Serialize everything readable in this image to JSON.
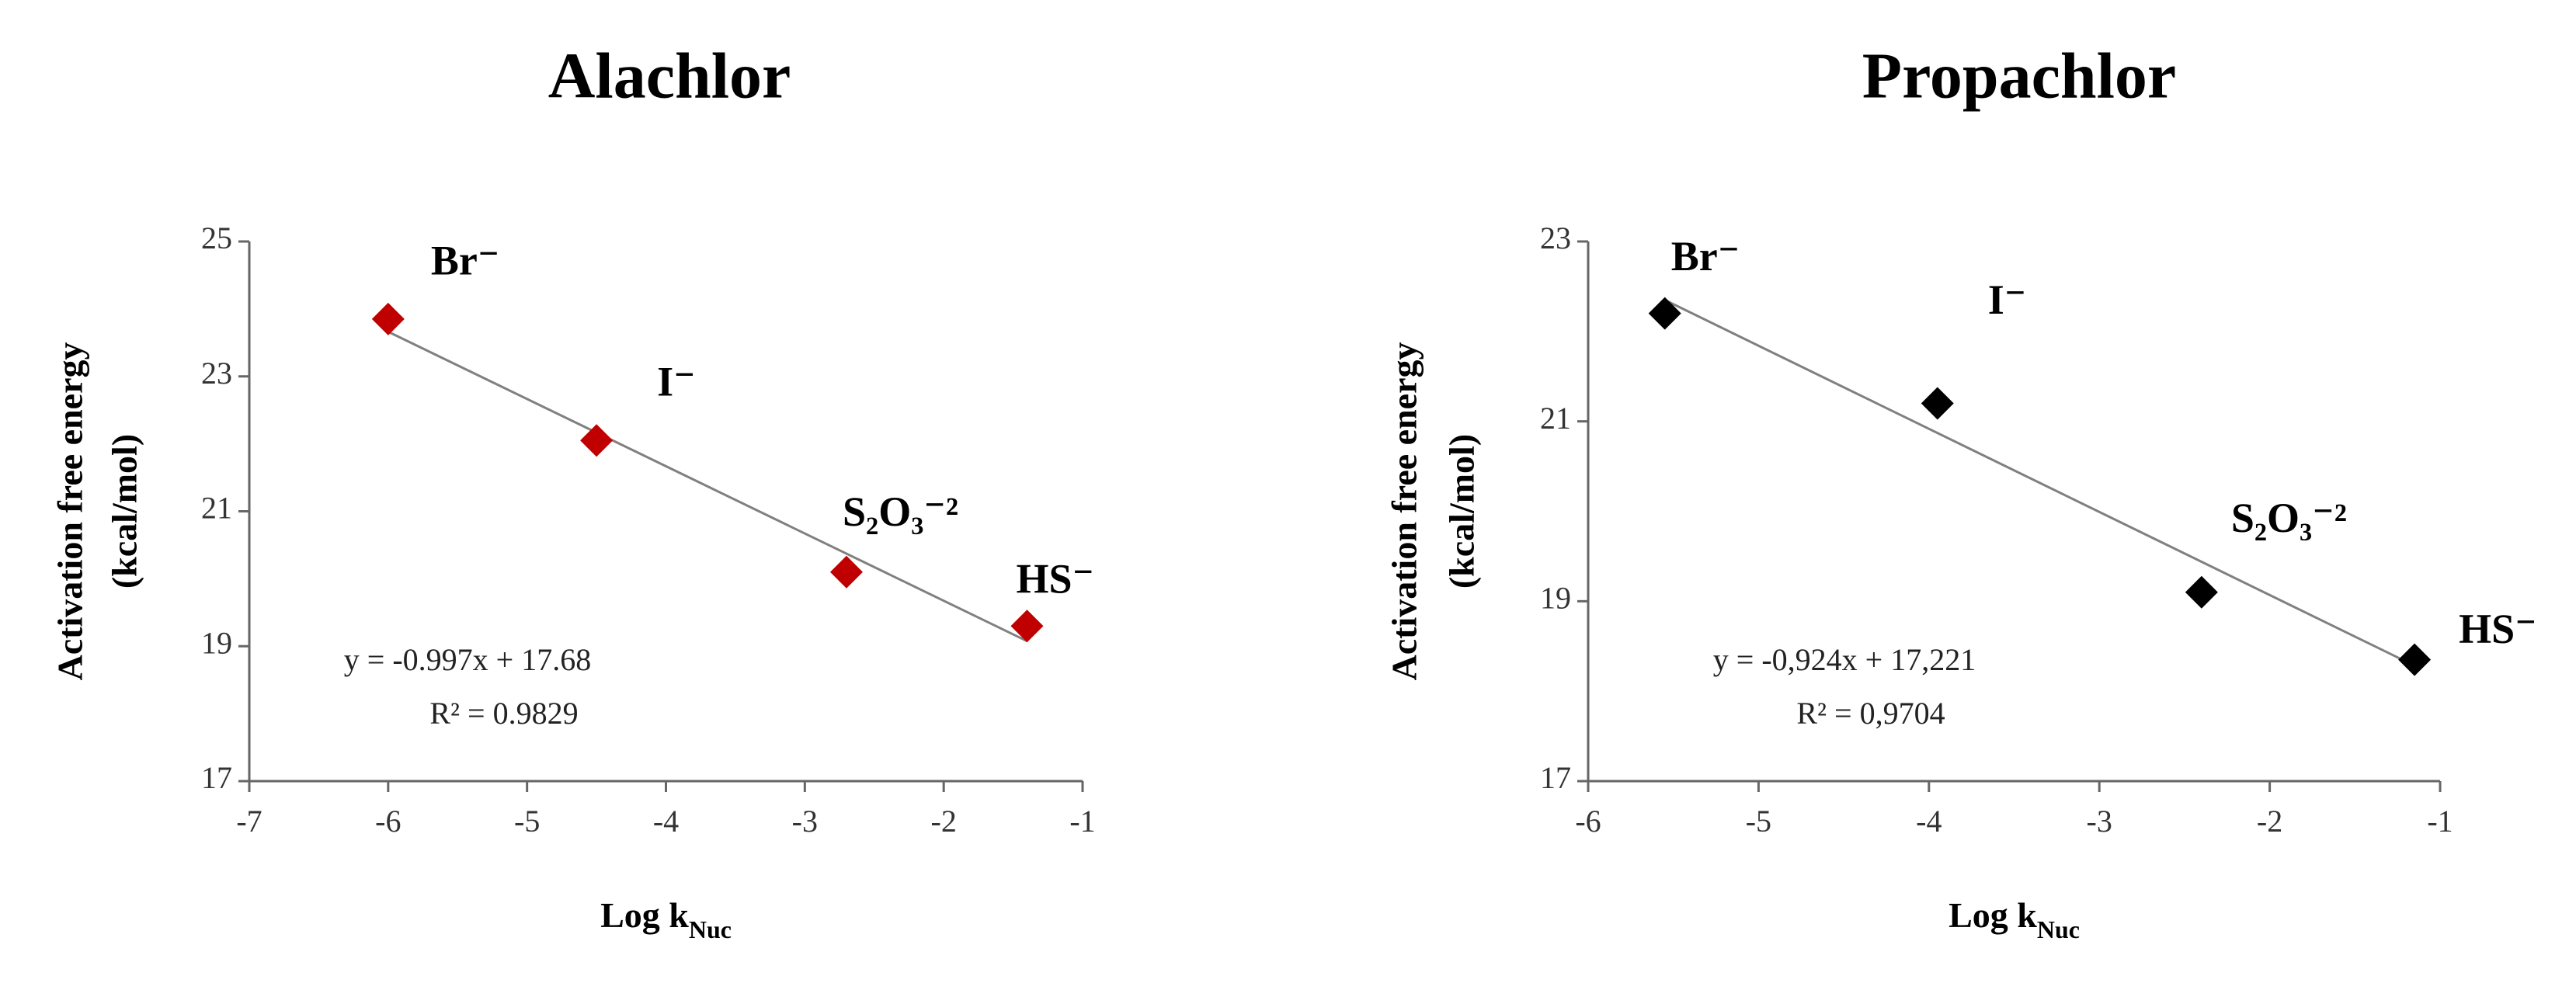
{
  "chart_data": [
    {
      "type": "scatter",
      "title": "Alachlor",
      "xlabel": "Log k",
      "xlabel_sub": "Nuc",
      "ylabel": [
        "Activation free energy",
        "(kcal/mol)"
      ],
      "xlim": [
        -7,
        -1
      ],
      "xticks": [
        -7,
        -6,
        -5,
        -4,
        -3,
        -2,
        -1
      ],
      "ylim": [
        17,
        25
      ],
      "yticks": [
        17,
        19,
        21,
        23,
        25
      ],
      "series": [
        {
          "color": "#c00000",
          "x": [
            -6.0,
            -4.5,
            -2.7,
            -1.4
          ],
          "values": [
            23.85,
            22.05,
            20.1,
            19.3
          ],
          "point_labels": [
            "Br⁻",
            "I⁻",
            "S₂O₃⁻²",
            "HS⁻"
          ]
        }
      ],
      "trendline": {
        "slope": -0.997,
        "intercept": 17.68,
        "color": "#808080",
        "equation": "y = -0.997x + 17.68",
        "r2": "R² = 0.9829"
      }
    },
    {
      "type": "scatter",
      "title": "Propachlor",
      "xlabel": "Log k",
      "xlabel_sub": "Nuc",
      "ylabel": [
        "Activation free energy",
        "(kcal/mol)"
      ],
      "xlim": [
        -6,
        -1
      ],
      "xticks": [
        -6,
        -5,
        -4,
        -3,
        -2,
        -1
      ],
      "ylim": [
        17,
        23
      ],
      "yticks": [
        17,
        19,
        21,
        23
      ],
      "series": [
        {
          "color": "#000000",
          "x": [
            -5.55,
            -3.95,
            -2.4,
            -1.15
          ],
          "values": [
            22.2,
            21.2,
            19.1,
            18.35
          ],
          "point_labels": [
            "Br⁻",
            "I⁻",
            "S₂O₃⁻²",
            "HS⁻"
          ]
        }
      ],
      "trendline": {
        "slope": -0.924,
        "intercept": 17.221,
        "color": "#808080",
        "equation": "y = -0,924x + 17,221",
        "r2": "R² = 0,9704"
      }
    }
  ]
}
